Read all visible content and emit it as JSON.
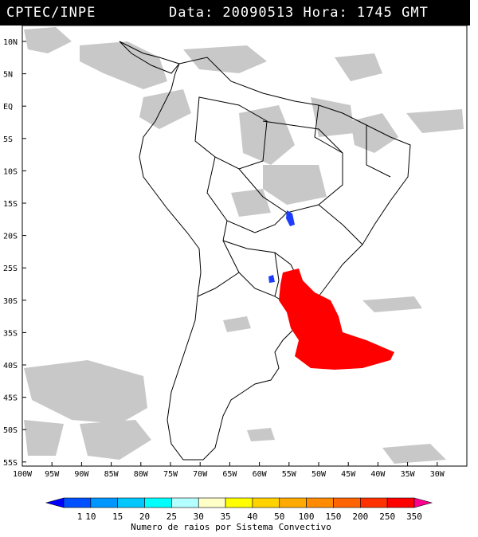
{
  "header": {
    "left_title": "CPTEC/INPE",
    "right_title": "Data: 20090513 Hora: 1745 GMT"
  },
  "map": {
    "lat_labels": [
      "10N",
      "5N",
      "EQ",
      "5S",
      "10S",
      "15S",
      "20S",
      "25S",
      "30S",
      "35S",
      "40S",
      "45S",
      "50S",
      "55S"
    ],
    "lon_labels": [
      "100W",
      "95W",
      "90W",
      "85W",
      "80W",
      "75W",
      "70W",
      "65W",
      "60W",
      "55W",
      "50W",
      "45W",
      "40W",
      "35W",
      "30W"
    ],
    "lat_values": [
      10,
      5,
      0,
      -5,
      -10,
      -15,
      -20,
      -25,
      -30,
      -35,
      -40,
      -45,
      -50,
      -55
    ],
    "lon_values": [
      -100,
      -95,
      -90,
      -85,
      -80,
      -75,
      -70,
      -65,
      -60,
      -55,
      -50,
      -45,
      -40,
      -35,
      -30
    ],
    "colors": {
      "land_border": "#000000",
      "cloud": "#c8c8c8",
      "lightning_high": "#ff0000",
      "lightning_low": "#1e3cff"
    }
  },
  "legend": {
    "labels": [
      "1",
      "10",
      "15",
      "20",
      "25",
      "30",
      "35",
      "40",
      "50",
      "100",
      "150",
      "200",
      "250",
      "350"
    ],
    "colors": [
      "#0000ff",
      "#0050ff",
      "#0096ff",
      "#00c8ff",
      "#00ffff",
      "#b4ffff",
      "#ffffc8",
      "#ffff00",
      "#ffd200",
      "#ffaa00",
      "#ff8c00",
      "#ff6400",
      "#ff3200",
      "#ff0000",
      "#ff0090"
    ],
    "title": "Numero de raios por Sistema Convectivo"
  }
}
